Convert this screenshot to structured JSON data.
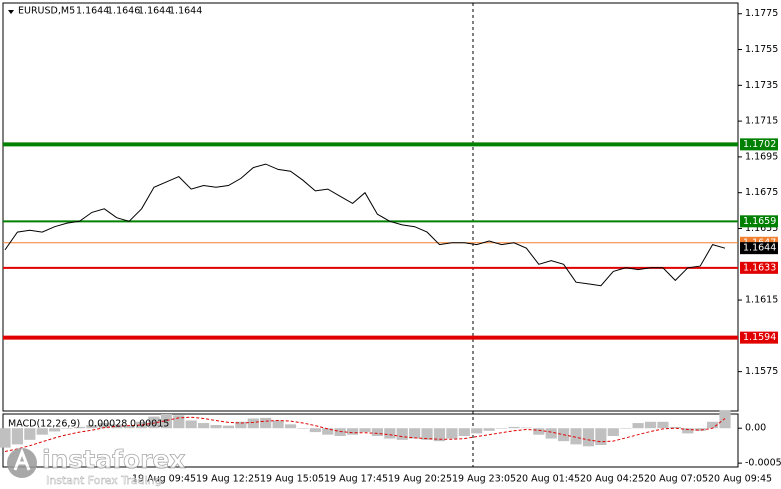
{
  "symbol": "EURUSD,M5",
  "ohlc": [
    1.1644,
    1.1646,
    1.1644,
    1.1644
  ],
  "time_axis": [
    "19 Aug 09:45",
    "19 Aug 12:25",
    "19 Aug 15:05",
    "19 Aug 17:45",
    "19 Aug 20:25",
    "19 Aug 23:05",
    "20 Aug 01:45",
    "20 Aug 04:25",
    "20 Aug 07:05",
    "20 Aug 09:45"
  ],
  "watermark": {
    "brand": "instaforex",
    "tagline": "Instant Forex Trading"
  },
  "chart_data": [
    {
      "type": "line",
      "color": "#000000",
      "values": [
        1.1643,
        1.1653,
        1.1654,
        1.1653,
        1.1656,
        1.1658,
        1.1659,
        1.1664,
        1.1666,
        1.1661,
        1.1659,
        1.1666,
        1.1678,
        1.1681,
        1.1684,
        1.1677,
        1.1679,
        1.1678,
        1.1679,
        1.1683,
        1.1689,
        1.1691,
        1.1688,
        1.1687,
        1.1682,
        1.1676,
        1.1677,
        1.1673,
        1.1669,
        1.1675,
        1.1663,
        1.1659,
        1.1657,
        1.1656,
        1.1653,
        1.1646,
        1.1647,
        1.1647,
        1.1646,
        1.1648,
        1.1646,
        1.1647,
        1.1644,
        1.1635,
        1.1637,
        1.1635,
        1.1625,
        1.1624,
        1.1623,
        1.1631,
        1.1633,
        1.1632,
        1.1633,
        1.1633,
        1.1626,
        1.1633,
        1.1634,
        1.1646,
        1.1644
      ],
      "ylim": [
        1.1553,
        1.1781
      ],
      "yticks": [
        1.1775,
        1.1755,
        1.1735,
        1.1715,
        1.1695,
        1.1675,
        1.1655,
        1.1615,
        1.1575
      ],
      "levels": [
        {
          "value": 1.1702,
          "color": "#008000",
          "width": 4
        },
        {
          "value": 1.1659,
          "color": "#008000",
          "width": 2
        },
        {
          "value": 1.1647,
          "color": "#f08030",
          "width": 1
        },
        {
          "value": 1.1633,
          "color": "#e00000",
          "width": 2
        },
        {
          "value": 1.1594,
          "color": "#e00000",
          "width": 4
        }
      ],
      "current_price": 1.1644
    },
    {
      "type": "macd",
      "title": "MACD(12,26,9)",
      "readings": [
        0.00028,
        0.00015
      ],
      "histogram_color": "#c0c0c0",
      "signal_color": "#e00000",
      "histogram": [
        -0.0003,
        -0.00025,
        -0.00018,
        -0.0001,
        -5e-05,
        0,
        2e-05,
        5e-05,
        8e-05,
        6e-05,
        4e-05,
        0.0001,
        0.00018,
        0.00022,
        0.0002,
        0.00012,
        8e-05,
        5e-05,
        4e-05,
        0.0001,
        0.00015,
        0.00016,
        0.00012,
        6e-05,
        0,
        -6e-05,
        -0.0001,
        -0.00012,
        -0.0001,
        -6e-05,
        -0.00012,
        -0.00016,
        -0.00018,
        -0.00016,
        -0.00018,
        -0.0002,
        -0.00016,
        -0.00012,
        -8e-05,
        -4e-05,
        0,
        2e-05,
        1e-05,
        -0.0001,
        -0.00016,
        -0.0002,
        -0.00025,
        -0.00028,
        -0.00026,
        -0.00012,
        0,
        8e-05,
        0.0001,
        0.0001,
        2e-05,
        -8e-05,
        -4e-05,
        0.0001,
        0.00028
      ],
      "signal": [
        -0.00036,
        -0.00032,
        -0.00027,
        -0.00021,
        -0.00015,
        -0.0001,
        -6e-05,
        -3e-05,
        1e-05,
        3e-05,
        4e-05,
        5e-05,
        8e-05,
        0.00012,
        0.00016,
        0.00017,
        0.00015,
        0.00012,
        9e-05,
        8e-05,
        9e-05,
        0.00011,
        0.00012,
        0.00011,
        8e-05,
        4e-05,
        -1e-05,
        -5e-05,
        -7e-05,
        -7e-05,
        -8e-05,
        -0.0001,
        -0.00013,
        -0.00015,
        -0.00016,
        -0.00017,
        -0.00017,
        -0.00016,
        -0.00013,
        -0.0001,
        -7e-05,
        -4e-05,
        -2e-05,
        -3e-05,
        -6e-05,
        -0.0001,
        -0.00014,
        -0.00018,
        -0.00021,
        -0.0002,
        -0.00015,
        -0.0001,
        -5e-05,
        -1e-05,
        0,
        -2e-05,
        -3e-05,
        0,
        0.00015
      ],
      "ylim": [
        -0.0006,
        0.00022
      ],
      "yticks": [
        {
          "value": 0,
          "label": "0.00"
        },
        -0.00054
      ]
    }
  ]
}
